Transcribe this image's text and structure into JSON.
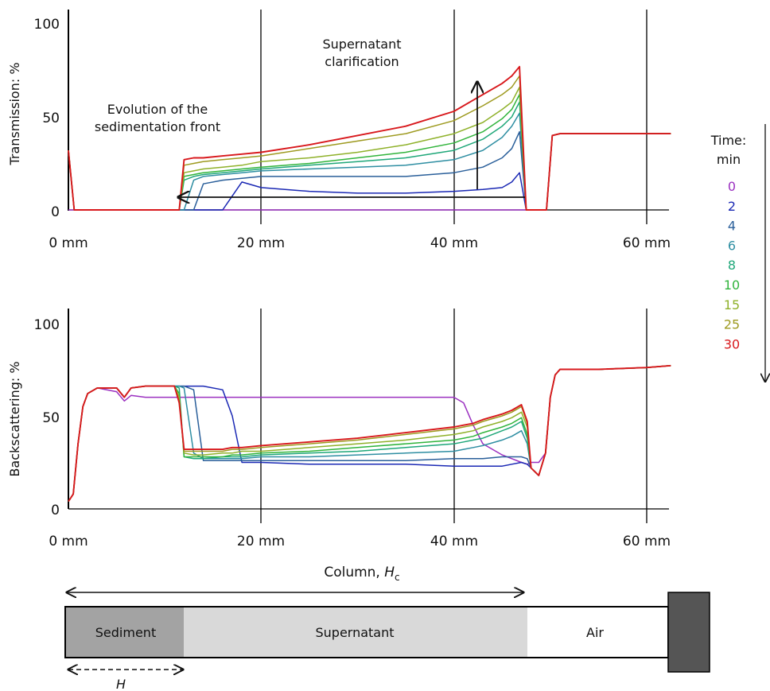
{
  "chart_data": [
    {
      "type": "line",
      "ylabel": "Transmission: %",
      "xlim": [
        0,
        62.5
      ],
      "ylim": [
        0,
        100
      ],
      "xticks": [
        "0 mm",
        "20 mm",
        "40 mm",
        "60 mm"
      ],
      "yticks": [
        "0",
        "50",
        "100"
      ],
      "annotations": {
        "front": [
          "Evolution of the",
          "sedimentation front"
        ],
        "clarification": [
          "Supernatant",
          "clarification"
        ]
      },
      "x": [
        0,
        0.6,
        1.2,
        2,
        11.5,
        12,
        13,
        14,
        16,
        18,
        20,
        25,
        30,
        35,
        40,
        43,
        45,
        46,
        46.8,
        47.5,
        48,
        49,
        49.6,
        50.2,
        51,
        55,
        60,
        62.5
      ],
      "series": [
        {
          "name": "0",
          "values": [
            0,
            0,
            0,
            0,
            0,
            0,
            0,
            0,
            0,
            0,
            0,
            0,
            0,
            0,
            0,
            0,
            0,
            0,
            0,
            0,
            0,
            0,
            0,
            40,
            41,
            41,
            41,
            41
          ]
        },
        {
          "name": "2",
          "values": [
            32,
            0,
            0,
            0,
            0,
            0,
            0,
            0,
            0,
            15,
            12,
            10,
            9,
            9,
            10,
            11,
            12,
            15,
            20,
            0,
            0,
            0,
            0,
            40,
            41,
            41,
            41,
            41
          ]
        },
        {
          "name": "4",
          "values": [
            32,
            0,
            0,
            0,
            0,
            0,
            0,
            14,
            16,
            17,
            18,
            18,
            18,
            18,
            20,
            23,
            28,
            33,
            42,
            0,
            0,
            0,
            0,
            40,
            41,
            41,
            41,
            41
          ]
        },
        {
          "name": "6",
          "values": [
            32,
            0,
            0,
            0,
            0,
            0,
            16,
            18,
            19,
            20,
            21,
            22,
            23,
            24,
            27,
            32,
            39,
            45,
            52,
            0,
            0,
            0,
            0,
            40,
            41,
            41,
            41,
            41
          ]
        },
        {
          "name": "8",
          "values": [
            32,
            0,
            0,
            0,
            0,
            16,
            18,
            19,
            20,
            21,
            22,
            24,
            26,
            28,
            32,
            38,
            45,
            50,
            58,
            0,
            0,
            0,
            0,
            40,
            41,
            41,
            41,
            41
          ]
        },
        {
          "name": "10",
          "values": [
            32,
            0,
            0,
            0,
            0,
            18,
            19,
            20,
            21,
            22,
            23,
            25,
            28,
            31,
            36,
            42,
            49,
            54,
            62,
            0,
            0,
            0,
            0,
            40,
            41,
            41,
            41,
            41
          ]
        },
        {
          "name": "15",
          "values": [
            32,
            0,
            0,
            0,
            0,
            20,
            21,
            22,
            23,
            24,
            26,
            28,
            31,
            35,
            41,
            47,
            54,
            58,
            66,
            0,
            0,
            0,
            0,
            40,
            41,
            41,
            41,
            41
          ]
        },
        {
          "name": "25",
          "values": [
            32,
            0,
            0,
            0,
            0,
            24,
            25,
            26,
            27,
            28,
            29,
            33,
            37,
            41,
            48,
            56,
            62,
            66,
            72,
            0,
            0,
            0,
            0,
            40,
            41,
            41,
            41,
            41
          ]
        },
        {
          "name": "30",
          "values": [
            32,
            0,
            0,
            0,
            0,
            27,
            28,
            28,
            29,
            30,
            31,
            35,
            40,
            45,
            53,
            62,
            68,
            72,
            77,
            0,
            0,
            0,
            0,
            40,
            41,
            41,
            41,
            41
          ]
        }
      ]
    },
    {
      "type": "line",
      "ylabel": "Backscattering: %",
      "xlabel": "Column, ",
      "xlabel_italic": "H",
      "xlabel_sub": "c",
      "xlim": [
        0,
        62.5
      ],
      "ylim": [
        0,
        100
      ],
      "xticks": [
        "0 mm",
        "20 mm",
        "40 mm",
        "60 mm"
      ],
      "yticks": [
        "0",
        "50",
        "100"
      ],
      "x": [
        0,
        0.5,
        1,
        1.5,
        2,
        3,
        5,
        5.8,
        6.5,
        8,
        10,
        11,
        11.5,
        12,
        13,
        14,
        16,
        17,
        18,
        20,
        25,
        30,
        35,
        40,
        41,
        42,
        43,
        45,
        46,
        47,
        47.6,
        48,
        48.8,
        49.5,
        50,
        50.5,
        51,
        52,
        55,
        60,
        62.5
      ],
      "series": [
        {
          "name": "0",
          "values": [
            4,
            8,
            35,
            55,
            62,
            65,
            63,
            58,
            61,
            60,
            60,
            60,
            60,
            60,
            60,
            60,
            60,
            60,
            60,
            60,
            60,
            60,
            60,
            60,
            57,
            45,
            35,
            29,
            27,
            25,
            24,
            25,
            25,
            30,
            60,
            72,
            75,
            75,
            75,
            76,
            77
          ]
        },
        {
          "name": "2",
          "values": [
            4,
            8,
            35,
            55,
            62,
            65,
            65,
            60,
            65,
            66,
            66,
            66,
            66,
            66,
            66,
            66,
            64,
            50,
            25,
            25,
            24,
            24,
            24,
            23,
            23,
            23,
            23,
            23,
            24,
            25,
            24,
            22,
            18,
            30,
            60,
            72,
            75,
            75,
            75,
            76,
            77
          ]
        },
        {
          "name": "4",
          "values": [
            4,
            8,
            35,
            55,
            62,
            65,
            65,
            60,
            65,
            66,
            66,
            66,
            66,
            66,
            64,
            26,
            26,
            26,
            26,
            26,
            26,
            26,
            26,
            27,
            27,
            27,
            27,
            28,
            28,
            28,
            27,
            22,
            18,
            30,
            60,
            72,
            75,
            75,
            75,
            76,
            77
          ]
        },
        {
          "name": "6",
          "values": [
            4,
            8,
            35,
            55,
            62,
            65,
            65,
            60,
            65,
            66,
            66,
            66,
            66,
            65,
            30,
            27,
            27,
            27,
            27,
            28,
            28,
            29,
            30,
            31,
            32,
            33,
            34,
            37,
            39,
            42,
            35,
            22,
            18,
            30,
            60,
            72,
            75,
            75,
            75,
            76,
            77
          ]
        },
        {
          "name": "8",
          "values": [
            4,
            8,
            35,
            55,
            62,
            65,
            65,
            60,
            65,
            66,
            66,
            66,
            65,
            28,
            27,
            27,
            28,
            28,
            28,
            29,
            30,
            31,
            33,
            35,
            36,
            37,
            38,
            42,
            44,
            47,
            38,
            22,
            18,
            30,
            60,
            72,
            75,
            75,
            75,
            76,
            77
          ]
        },
        {
          "name": "10",
          "values": [
            4,
            8,
            35,
            55,
            62,
            65,
            65,
            60,
            65,
            66,
            66,
            66,
            62,
            28,
            28,
            28,
            28,
            29,
            29,
            30,
            31,
            33,
            35,
            37,
            38,
            39,
            41,
            44,
            46,
            49,
            40,
            22,
            18,
            30,
            60,
            72,
            75,
            75,
            75,
            76,
            77
          ]
        },
        {
          "name": "15",
          "values": [
            4,
            8,
            35,
            55,
            62,
            65,
            65,
            60,
            65,
            66,
            66,
            66,
            60,
            30,
            29,
            29,
            30,
            30,
            31,
            31,
            33,
            35,
            37,
            40,
            41,
            42,
            44,
            47,
            49,
            52,
            44,
            22,
            18,
            30,
            60,
            72,
            75,
            75,
            75,
            76,
            77
          ]
        },
        {
          "name": "25",
          "values": [
            4,
            8,
            35,
            55,
            62,
            65,
            65,
            60,
            65,
            66,
            66,
            66,
            58,
            31,
            31,
            31,
            31,
            32,
            32,
            33,
            35,
            37,
            40,
            43,
            44,
            45,
            47,
            50,
            52,
            55,
            46,
            22,
            18,
            30,
            60,
            72,
            75,
            75,
            75,
            76,
            77
          ]
        },
        {
          "name": "30",
          "values": [
            4,
            8,
            35,
            55,
            62,
            65,
            65,
            60,
            65,
            66,
            66,
            66,
            57,
            32,
            32,
            32,
            32,
            33,
            33,
            34,
            36,
            38,
            41,
            44,
            45,
            46,
            48,
            51,
            53,
            56,
            47,
            22,
            18,
            30,
            60,
            72,
            75,
            75,
            75,
            76,
            77
          ]
        }
      ]
    }
  ],
  "legend": {
    "title": "Time:",
    "unit": "min",
    "items": [
      {
        "label": "0",
        "color": "#9b30c0"
      },
      {
        "label": "2",
        "color": "#1a28b4"
      },
      {
        "label": "4",
        "color": "#2a5f9a"
      },
      {
        "label": "6",
        "color": "#2e8ea2"
      },
      {
        "label": "8",
        "color": "#1fa779"
      },
      {
        "label": "10",
        "color": "#31b43c"
      },
      {
        "label": "15",
        "color": "#8fb12a"
      },
      {
        "label": "25",
        "color": "#9e9a20"
      },
      {
        "label": "30",
        "color": "#d8181c"
      }
    ]
  },
  "column": {
    "sediment": "Sediment",
    "supernatant": "Supernatant",
    "air": "Air",
    "height_label": "H"
  }
}
